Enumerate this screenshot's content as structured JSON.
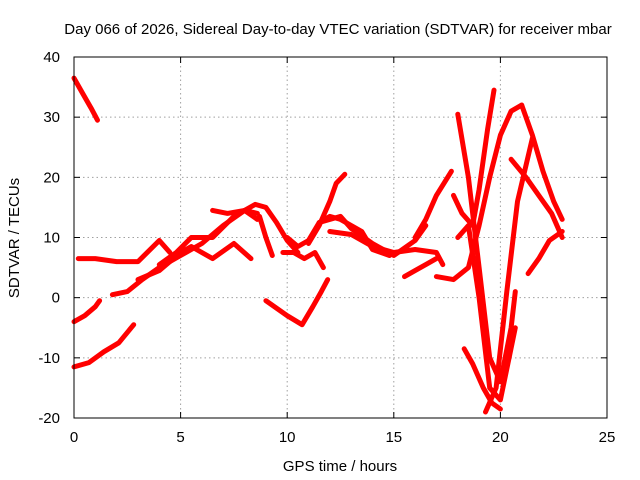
{
  "chart_data": {
    "type": "scatter",
    "title": "Day 066 of 2026, Sidereal Day-to-day VTEC variation (SDTVAR) for receiver mbar",
    "xlabel": "GPS time / hours",
    "ylabel": "SDTVAR / TECUs",
    "xlim": [
      0,
      25
    ],
    "ylim": [
      -20,
      40
    ],
    "xticks": [
      "0",
      "5",
      "10",
      "15",
      "20",
      "25"
    ],
    "yticks": [
      "-20",
      "-10",
      "0",
      "10",
      "20",
      "30",
      "40"
    ],
    "grid": true,
    "marker": "+",
    "color": "#ff0000",
    "series": [
      {
        "x": [
          0.0,
          0.4,
          0.8,
          1.1
        ],
        "y": [
          36.5,
          34,
          31.5,
          29.5
        ]
      },
      {
        "x": [
          0.2,
          1.0,
          2.0,
          3.0,
          4.0,
          4.5
        ],
        "y": [
          6.5,
          6.5,
          6.0,
          6.0,
          9.5,
          7.5
        ]
      },
      {
        "x": [
          0.0,
          0.5,
          1.0,
          1.2
        ],
        "y": [
          -4,
          -3,
          -1.5,
          -0.5
        ]
      },
      {
        "x": [
          0.0,
          0.7,
          1.4,
          2.1,
          2.8
        ],
        "y": [
          -11.5,
          -10.8,
          -9.0,
          -7.5,
          -4.5
        ]
      },
      {
        "x": [
          1.8,
          2.5,
          3.2,
          4.0,
          5.0,
          6.0,
          7.0,
          8.0,
          8.6
        ],
        "y": [
          0.5,
          1.0,
          3.0,
          5.0,
          7.0,
          9.0,
          12.0,
          14.5,
          14.0
        ]
      },
      {
        "x": [
          3.0,
          4.0,
          5.0,
          5.5,
          6.5,
          7.5,
          8.3
        ],
        "y": [
          3.0,
          4.5,
          7.5,
          8.5,
          6.5,
          9.0,
          6.5
        ]
      },
      {
        "x": [
          4.0,
          4.8,
          5.5,
          6.5,
          7.5,
          8.5,
          9.0,
          9.5,
          10.0,
          10.5
        ],
        "y": [
          5.5,
          7.5,
          10.0,
          10.0,
          13.5,
          15.5,
          15.0,
          12.5,
          9.5,
          7.5
        ]
      },
      {
        "x": [
          6.5,
          7.2,
          8.0,
          8.6
        ],
        "y": [
          14.5,
          14.0,
          14.5,
          13.0
        ]
      },
      {
        "x": [
          8.7,
          9.0,
          9.3
        ],
        "y": [
          13.5,
          10.0,
          7.0
        ]
      },
      {
        "x": [
          9.0,
          10.0,
          10.7,
          11.2,
          11.6,
          11.9
        ],
        "y": [
          -0.5,
          -3.0,
          -4.5,
          -1.5,
          1.0,
          3.0
        ]
      },
      {
        "x": [
          9.8,
          10.3,
          10.8,
          11.3,
          11.7
        ],
        "y": [
          7.5,
          7.5,
          6.5,
          7.5,
          5.0
        ]
      },
      {
        "x": [
          10.0,
          10.5,
          11.0,
          11.5,
          12.0,
          12.5,
          13.0,
          13.5,
          14.0,
          14.8
        ],
        "y": [
          10.0,
          8.5,
          9.5,
          12.5,
          13.5,
          13.0,
          12.0,
          11.0,
          8.0,
          7.0
        ]
      },
      {
        "x": [
          11.0,
          11.5,
          12.0,
          12.3,
          12.7
        ],
        "y": [
          9.0,
          12.0,
          16.0,
          19.0,
          20.5
        ]
      },
      {
        "x": [
          11.5,
          12.5,
          13.0,
          14.0,
          15.0,
          16.0,
          16.5
        ],
        "y": [
          12.5,
          13.5,
          11.5,
          9.0,
          7.0,
          9.5,
          12.0
        ]
      },
      {
        "x": [
          12.0,
          13.0,
          14.0,
          15.0,
          16.0,
          17.0,
          17.3
        ],
        "y": [
          11.0,
          10.5,
          8.5,
          7.5,
          8.0,
          7.5,
          5.5
        ]
      },
      {
        "x": [
          15.5,
          16.0,
          16.5,
          17.0
        ],
        "y": [
          3.5,
          4.5,
          5.5,
          6.5
        ]
      },
      {
        "x": [
          16.0,
          16.5,
          17.0,
          17.7
        ],
        "y": [
          10.0,
          13.0,
          17.0,
          21.0
        ]
      },
      {
        "x": [
          17.0,
          17.8,
          18.5,
          19.0,
          19.5,
          20.0,
          20.5,
          21.0
        ],
        "y": [
          3.5,
          3.0,
          5.0,
          12.0,
          20.0,
          27.0,
          31.0,
          32.0
        ]
      },
      {
        "x": [
          17.8,
          18.2,
          18.7,
          19.0,
          19.4,
          19.7
        ],
        "y": [
          17.0,
          14.0,
          12.0,
          18.0,
          28.0,
          34.5
        ]
      },
      {
        "x": [
          18.0,
          18.5,
          19.0,
          19.5,
          20.0,
          20.5,
          20.7
        ],
        "y": [
          30.5,
          20.0,
          5.0,
          -10.0,
          -14.0,
          -5.0,
          1.0
        ]
      },
      {
        "x": [
          18.0,
          18.5,
          19.0,
          19.5,
          20.0,
          20.7
        ],
        "y": [
          10.0,
          12.0,
          0.0,
          -15.0,
          -17.0,
          -5.0
        ]
      },
      {
        "x": [
          18.3,
          18.7,
          19.2,
          19.6,
          20.0
        ],
        "y": [
          -8.5,
          -11.0,
          -15.0,
          -17.5,
          -18.5
        ]
      },
      {
        "x": [
          19.3,
          19.8,
          20.3,
          20.8,
          21.5
        ],
        "y": [
          -19.0,
          -15.0,
          1.0,
          16.0,
          26.5
        ]
      },
      {
        "x": [
          21.0,
          21.5,
          22.0,
          22.5,
          22.9
        ],
        "y": [
          32.0,
          27.0,
          21.0,
          16.0,
          13.0
        ]
      },
      {
        "x": [
          21.3,
          21.8,
          22.3,
          22.9
        ],
        "y": [
          4.0,
          6.5,
          9.5,
          11.0
        ]
      },
      {
        "x": [
          20.5,
          21.2,
          21.8,
          22.4,
          22.9
        ],
        "y": [
          23.0,
          20.0,
          17.0,
          14.0,
          10.0
        ]
      }
    ]
  }
}
